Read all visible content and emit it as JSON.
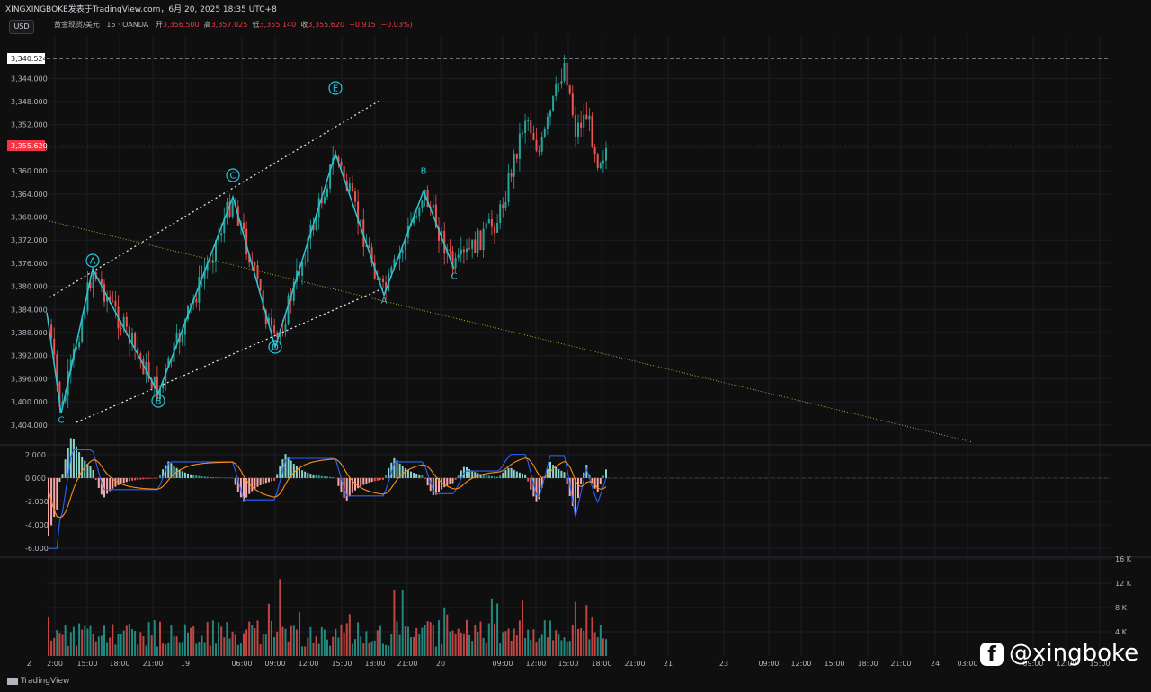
{
  "header": {
    "title": "XINGXINGBOKE发表于TradingView.com，6月 20, 2025 18:35 UTC+8",
    "currency_button": "USD",
    "symbol": "黄金现货/美元 · 15 · OANDA",
    "open_label": "开",
    "open_value": "3,356.500",
    "high_label": "高",
    "high_value": "3,357.025",
    "low_label": "低",
    "low_value": "3,355.140",
    "close_label": "收",
    "close_value": "3,355.620",
    "change": "−0.915 (−0.03%)"
  },
  "price_axis": {
    "ticks": [
      "3,344.000",
      "3,348.000",
      "3,352.000",
      "3,356.000",
      "3,360.000",
      "3,364.000",
      "3,368.000",
      "3,372.000",
      "3,376.000",
      "3,380.000",
      "3,384.000",
      "3,388.000",
      "3,392.000",
      "3,396.000",
      "3,400.000",
      "3,404.000"
    ],
    "top_label": "3,340.524",
    "current_label": "3,355.620"
  },
  "macd_axis": {
    "ticks": [
      "2.000",
      "0.000",
      "-2.000",
      "-4.000",
      "-6.000"
    ]
  },
  "volume_axis": {
    "ticks": [
      "16 K",
      "12 K",
      "8 K",
      "4 K"
    ]
  },
  "time_axis": {
    "ticks": [
      "2:00",
      "15:00",
      "18:00",
      "21:00",
      "19",
      "06:00",
      "09:00",
      "12:00",
      "15:00",
      "18:00",
      "21:00",
      "20",
      "09:00",
      "12:00",
      "15:00",
      "18:00",
      "21:00",
      "21",
      "23",
      "09:00",
      "12:00",
      "15:00",
      "18:00",
      "21:00",
      "24",
      "03:00",
      "09:00",
      "12:00",
      "15:00"
    ],
    "corner_left": "Z"
  },
  "chart_data": {
    "type": "line",
    "instrument": "黄金现货/美元 · 15 · OANDA",
    "note_axis": "Price axis labels as printed; values rendered on an inverted scale (3,340.524 at top, 3,404.000 near bottom).",
    "wave_labels": [
      {
        "label": "A",
        "circled": true,
        "x": "15:00 (day 1)",
        "y": 3377.0
      },
      {
        "label": "B",
        "circled": true,
        "x": "21:00 (day 1)",
        "y": 3398.5
      },
      {
        "label": "C",
        "circled": false,
        "x": "12:00 (day 1)",
        "y": 3402.0
      },
      {
        "label": "C",
        "circled": true,
        "x": "06:00 (19)",
        "y": 3364.5
      },
      {
        "label": "D",
        "circled": true,
        "x": "09:00 (19)",
        "y": 3390.5
      },
      {
        "label": "E",
        "circled": true,
        "x": "15:00 (19)",
        "y": 3357.0
      },
      {
        "label": "A",
        "circled": false,
        "x": "19:00 (19)",
        "y": 3383.5
      },
      {
        "label": "B",
        "circled": false,
        "x": "22:30 (19)",
        "y": 3363.0
      },
      {
        "label": "C",
        "circled": false,
        "x": "01:00 (20)",
        "y": 3377.5
      }
    ],
    "wave_path": [
      3384.5,
      3402.0,
      3377.0,
      3398.5,
      3364.5,
      3390.5,
      3357.0,
      3381.5,
      3363.5,
      3377.0
    ],
    "macd_range": [
      -6.6,
      2.6
    ],
    "volume_max": 16,
    "horizontal_levels": [
      3340.524,
      3355.62
    ],
    "legend": "none"
  },
  "watermark": {
    "icon": "facebook-icon",
    "handle": "@xingboke"
  },
  "footer": {
    "brand": "TradingView"
  },
  "colors": {
    "bull": "#26a69a",
    "bear": "#ef5350",
    "wave": "#2ec4d6",
    "macd_line": "#2962ff",
    "signal_line": "#ff8c1a",
    "price_tag": "#f23645"
  }
}
